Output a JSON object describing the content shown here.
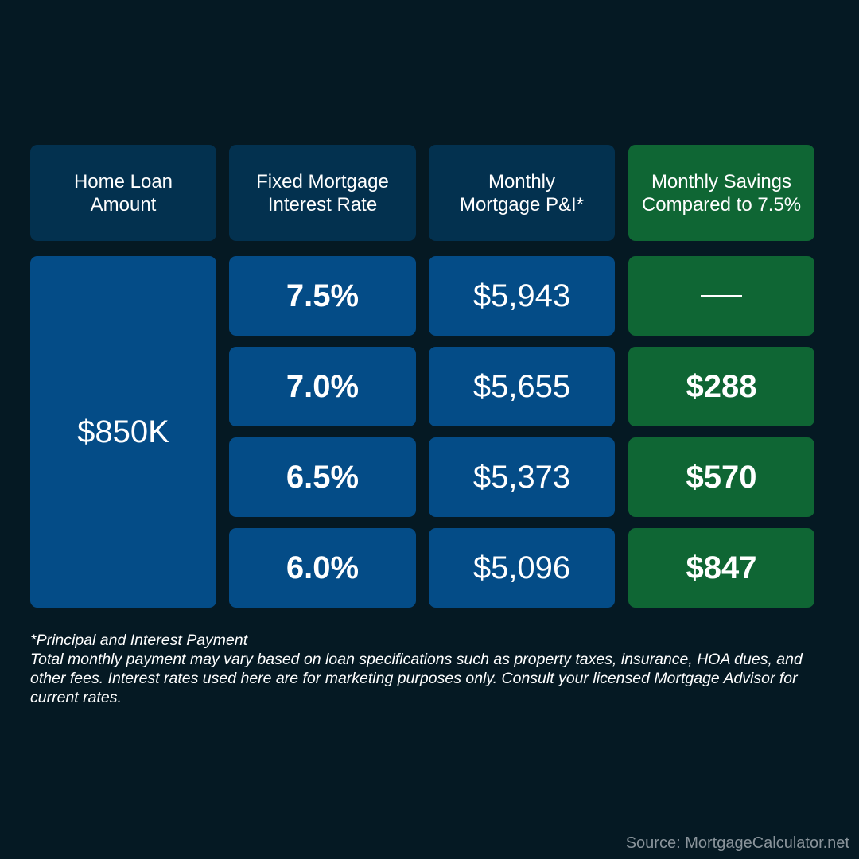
{
  "chart_data": {
    "type": "table",
    "columns": [
      "Home Loan Amount",
      "Fixed Mortgage Interest Rate",
      "Monthly Mortgage P&I*",
      "Monthly Savings Compared to 7.5%"
    ],
    "loan_amount": "$850K",
    "rows": [
      {
        "rate": "7.5%",
        "payment": "$5,943",
        "savings": ""
      },
      {
        "rate": "7.0%",
        "payment": "$5,655",
        "savings": "$288"
      },
      {
        "rate": "6.5%",
        "payment": "$5,373",
        "savings": "$570"
      },
      {
        "rate": "6.0%",
        "payment": "$5,096",
        "savings": "$847"
      }
    ]
  },
  "headers": {
    "loan_line1": "Home Loan",
    "loan_line2": "Amount",
    "rate_line1": "Fixed Mortgage",
    "rate_line2": "Interest Rate",
    "payment_line1": "Monthly",
    "payment_line2": "Mortgage P&I*",
    "savings_line1": "Monthly Savings",
    "savings_line2": "Compared to 7.5%"
  },
  "footnote": {
    "line1": "*Principal and Interest Payment",
    "body": "Total monthly payment may vary based on loan specifications such as property taxes, insurance, HOA dues, and other fees. Interest rates used here are for marketing purposes only. Consult your licensed Mortgage Advisor for current rates."
  },
  "source": "Source: MortgageCalculator.net",
  "colors": {
    "background": "#051923",
    "header_blue": "#03314f",
    "cell_blue": "#044c87",
    "green": "#0f6634"
  }
}
